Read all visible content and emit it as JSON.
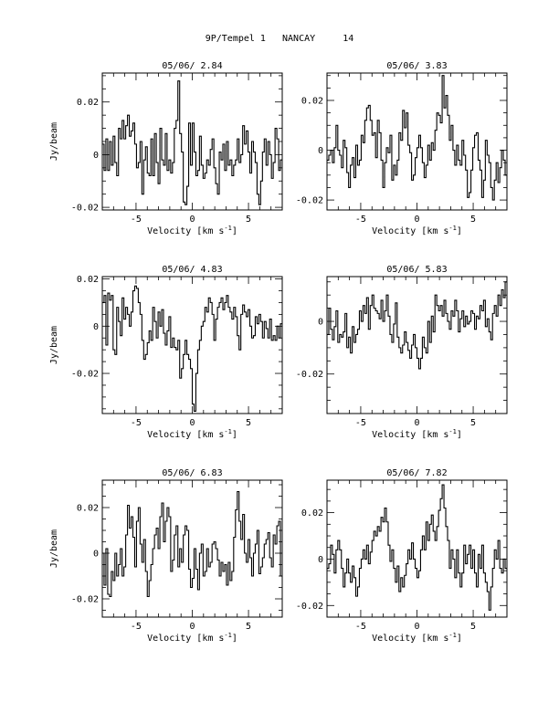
{
  "figure": {
    "title": "9P/Tempel 1   NANCAY     14"
  },
  "chart_data": [
    {
      "type": "line",
      "title": "05/06/ 2.84",
      "xlabel": "Velocity [km s^-1]",
      "ylabel": "Jy/beam",
      "xlim": [
        -8,
        8
      ],
      "ylim": [
        -0.021,
        0.031
      ],
      "x_ticks": [
        -5,
        0,
        5
      ],
      "y_ticks": [
        0.02,
        0,
        -0.02
      ],
      "y_tick_labels": [
        "0.02",
        "0",
        "-0.02"
      ],
      "x0": -8.0,
      "dx": 0.16,
      "values": [
        0.004,
        -0.006,
        0.006,
        -0.006,
        0.005,
        -0.004,
        0.007,
        -0.003,
        -0.008,
        0.01,
        0.006,
        0.013,
        0.006,
        0.011,
        0.015,
        0.007,
        0.009,
        0.012,
        0.004,
        -0.005,
        -0.003,
        0.005,
        -0.015,
        -0.002,
        0.003,
        -0.007,
        -0.008,
        0.006,
        -0.008,
        0.008,
        -0.003,
        -0.011,
        0.01,
        -0.002,
        -0.004,
        0.008,
        -0.006,
        -0.002,
        -0.007,
        -0.003,
        0.01,
        0.013,
        0.028,
        0.008,
        0.001,
        -0.018,
        -0.019,
        -0.012,
        0.012,
        -0.004,
        0.012,
        0.001,
        -0.008,
        -0.006,
        0.007,
        -0.004,
        -0.009,
        -0.007,
        -0.002,
        -0.004,
        0.002,
        0.006,
        -0.005,
        -0.011,
        -0.015,
        0.001,
        -0.002,
        0.004,
        -0.006,
        0.005,
        -0.004,
        -0.002,
        -0.008,
        -0.004,
        -0.002,
        0.006,
        -0.003,
        0.0,
        0.011,
        0.004,
        0.009,
        0.001,
        -0.007,
        0.005,
        0.001,
        -0.003,
        -0.015,
        -0.019,
        -0.01,
        0.001,
        0.006,
        -0.004,
        0.005,
        0.0,
        -0.009,
        -0.003,
        0.01,
        0.006,
        -0.006,
        -0.002
      ]
    },
    {
      "type": "line",
      "title": "05/06/ 3.83",
      "xlabel": "Velocity [km s^-1]",
      "ylabel": "",
      "xlim": [
        -8,
        8
      ],
      "ylim": [
        -0.024,
        0.031
      ],
      "x_ticks": [
        -5,
        0,
        5
      ],
      "y_ticks": [
        0.02,
        0,
        -0.02
      ],
      "y_tick_labels": [
        "0.02",
        "0",
        "-0.02"
      ],
      "x0": -8.0,
      "dx": 0.16,
      "values": [
        -0.004,
        -0.002,
        0.0,
        -0.005,
        0.001,
        0.01,
        0.0,
        -0.002,
        -0.007,
        0.004,
        0.001,
        -0.009,
        -0.015,
        -0.006,
        -0.003,
        -0.011,
        0.002,
        -0.006,
        -0.004,
        0.006,
        0.003,
        0.012,
        0.017,
        0.018,
        0.012,
        0.006,
        0.007,
        -0.003,
        0.012,
        0.007,
        -0.004,
        -0.015,
        -0.005,
        0.001,
        -0.001,
        0.006,
        -0.012,
        -0.006,
        -0.01,
        -0.004,
        0.007,
        0.004,
        0.016,
        0.009,
        0.015,
        0.002,
        -0.001,
        -0.012,
        -0.01,
        -0.003,
        0.001,
        0.006,
        0.001,
        -0.005,
        -0.011,
        -0.006,
        0.002,
        -0.004,
        0.003,
        0.0,
        0.008,
        0.015,
        0.014,
        0.011,
        0.03,
        0.017,
        0.022,
        0.014,
        0.004,
        0.01,
        0.0,
        -0.006,
        0.002,
        -0.004,
        -0.006,
        0.004,
        -0.002,
        -0.008,
        -0.019,
        -0.017,
        -0.008,
        0.001,
        0.006,
        0.007,
        -0.004,
        -0.008,
        -0.019,
        -0.012,
        0.004,
        -0.002,
        -0.005,
        -0.015,
        -0.02,
        -0.012,
        -0.005,
        -0.013,
        -0.007,
        0.0,
        -0.004,
        -0.01
      ]
    },
    {
      "type": "line",
      "title": "05/06/ 4.83",
      "xlabel": "Velocity [km s^-1]",
      "ylabel": "Jy/beam",
      "xlim": [
        -8,
        8
      ],
      "ylim": [
        -0.037,
        0.021
      ],
      "x_ticks": [
        -5,
        0,
        5
      ],
      "y_ticks": [
        0.02,
        0,
        -0.02
      ],
      "y_tick_labels": [
        "0.02",
        "0",
        "-0.02"
      ],
      "x0": -8.0,
      "dx": 0.16,
      "values": [
        0.01,
        0.013,
        -0.008,
        0.014,
        0.011,
        0.013,
        -0.01,
        -0.012,
        0.008,
        0.002,
        -0.004,
        0.012,
        0.003,
        0.008,
        0.005,
        0.0,
        0.006,
        0.015,
        0.017,
        0.016,
        0.01,
        0.005,
        -0.006,
        -0.014,
        -0.012,
        -0.007,
        -0.002,
        -0.006,
        0.008,
        0.002,
        -0.005,
        0.006,
        0.0,
        0.007,
        -0.003,
        -0.008,
        -0.002,
        0.004,
        -0.009,
        -0.005,
        -0.009,
        -0.01,
        -0.006,
        -0.022,
        -0.018,
        -0.012,
        -0.006,
        -0.012,
        -0.014,
        -0.018,
        -0.033,
        -0.036,
        -0.02,
        -0.01,
        -0.006,
        0.0,
        0.002,
        0.008,
        0.006,
        0.012,
        0.01,
        0.005,
        -0.006,
        0.003,
        0.008,
        0.01,
        0.012,
        0.007,
        0.01,
        0.013,
        0.008,
        0.006,
        0.003,
        0.008,
        0.004,
        -0.004,
        -0.01,
        0.005,
        0.009,
        0.006,
        0.004,
        0.007,
        0.0,
        -0.005,
        -0.004,
        0.004,
        0.001,
        0.005,
        0.002,
        -0.005,
        0.002,
        -0.001,
        -0.005,
        0.003,
        -0.006,
        -0.004,
        -0.006,
        0.0,
        -0.005,
        0.001
      ]
    },
    {
      "type": "line",
      "title": "05/06/ 5.83",
      "xlabel": "Velocity [km s^-1]",
      "ylabel": "",
      "xlim": [
        -8,
        8
      ],
      "ylim": [
        -0.035,
        0.017
      ],
      "x_ticks": [
        -5,
        0,
        5
      ],
      "y_ticks": [
        0,
        -0.02
      ],
      "y_tick_labels": [
        "0",
        "-0.02"
      ],
      "x0": -8.0,
      "dx": 0.16,
      "values": [
        -0.005,
        0.005,
        -0.003,
        -0.007,
        -0.002,
        0.004,
        -0.008,
        -0.005,
        -0.006,
        -0.004,
        0.003,
        -0.01,
        -0.006,
        -0.012,
        -0.002,
        -0.008,
        -0.005,
        -0.003,
        0.004,
        0.0,
        0.006,
        0.003,
        0.009,
        -0.003,
        0.006,
        0.01,
        0.005,
        0.004,
        0.003,
        0.001,
        0.008,
        0.0,
        0.004,
        0.01,
        0.002,
        -0.005,
        -0.008,
        -0.001,
        0.007,
        -0.006,
        -0.01,
        -0.012,
        -0.009,
        -0.004,
        -0.008,
        -0.011,
        -0.014,
        -0.009,
        -0.005,
        -0.01,
        -0.014,
        -0.018,
        -0.014,
        -0.006,
        -0.01,
        -0.012,
        0.0,
        -0.008,
        0.002,
        -0.004,
        0.01,
        0.006,
        0.004,
        0.006,
        0.002,
        0.008,
        0.003,
        0.0,
        -0.003,
        0.004,
        0.002,
        0.008,
        0.004,
        -0.004,
        0.001,
        0.004,
        -0.002,
        0.002,
        -0.001,
        0.0,
        0.004,
        0.003,
        -0.003,
        0.002,
        0.001,
        0.006,
        0.004,
        0.008,
        -0.002,
        0.001,
        -0.004,
        -0.007,
        0.003,
        0.006,
        0.002,
        0.01,
        0.006,
        0.012,
        0.009,
        0.015
      ]
    },
    {
      "type": "line",
      "title": "05/06/ 6.83",
      "xlabel": "Velocity [km s^-1]",
      "ylabel": "Jy/beam",
      "xlim": [
        -8,
        8
      ],
      "ylim": [
        -0.028,
        0.032
      ],
      "x_ticks": [
        -5,
        0,
        5
      ],
      "y_ticks": [
        0.02,
        0,
        -0.02
      ],
      "y_tick_labels": [
        "0.02",
        "0",
        "-0.02"
      ],
      "x0": -8.0,
      "dx": 0.16,
      "values": [
        0.0,
        -0.014,
        0.002,
        -0.018,
        -0.019,
        -0.008,
        -0.012,
        0.0,
        -0.01,
        -0.005,
        0.002,
        -0.01,
        -0.006,
        0.008,
        0.021,
        0.011,
        0.016,
        0.007,
        -0.006,
        0.014,
        0.02,
        0.004,
        -0.004,
        0.006,
        -0.008,
        -0.019,
        -0.012,
        -0.005,
        0.002,
        0.008,
        0.011,
        0.002,
        0.016,
        0.022,
        0.005,
        0.014,
        0.02,
        0.016,
        -0.008,
        -0.003,
        0.008,
        0.012,
        -0.006,
        0.002,
        -0.004,
        0.008,
        0.012,
        0.01,
        -0.007,
        -0.015,
        -0.011,
        0.002,
        -0.007,
        -0.016,
        0.0,
        0.004,
        -0.01,
        -0.008,
        0.002,
        -0.006,
        -0.004,
        0.004,
        0.005,
        0.002,
        -0.003,
        -0.01,
        -0.004,
        -0.008,
        -0.005,
        -0.014,
        -0.004,
        -0.012,
        -0.008,
        0.007,
        0.019,
        0.027,
        0.014,
        0.006,
        0.017,
        0.0,
        -0.004,
        0.006,
        -0.002,
        -0.01,
        0.0,
        0.004,
        0.01,
        -0.009,
        -0.006,
        -0.002,
        0.004,
        0.006,
        0.009,
        -0.002,
        -0.006,
        0.008,
        0.004,
        0.012,
        0.014,
        -0.01
      ]
    },
    {
      "type": "line",
      "title": "05/06/ 7.82",
      "xlabel": "Velocity [km s^-1]",
      "ylabel": "",
      "xlim": [
        -8,
        8
      ],
      "ylim": [
        -0.025,
        0.034
      ],
      "x_ticks": [
        -5,
        0,
        5
      ],
      "y_ticks": [
        0.02,
        0,
        -0.02
      ],
      "y_tick_labels": [
        "0.02",
        "0",
        "-0.02"
      ],
      "x0": -8.0,
      "dx": 0.16,
      "values": [
        -0.004,
        -0.002,
        0.006,
        0.002,
        -0.006,
        0.004,
        0.008,
        0.004,
        -0.004,
        -0.012,
        -0.006,
        0.0,
        -0.006,
        -0.01,
        -0.003,
        -0.008,
        -0.016,
        -0.012,
        -0.004,
        0.0,
        0.004,
        0.0,
        0.006,
        -0.002,
        0.003,
        0.008,
        0.012,
        0.01,
        0.014,
        0.012,
        0.018,
        0.016,
        0.022,
        0.016,
        0.006,
        -0.001,
        0.004,
        -0.004,
        -0.01,
        -0.003,
        -0.014,
        -0.008,
        -0.012,
        -0.007,
        -0.002,
        0.004,
        0.0,
        0.007,
        0.0,
        -0.004,
        -0.008,
        -0.005,
        0.004,
        0.01,
        0.004,
        0.016,
        0.008,
        0.015,
        0.019,
        0.012,
        0.008,
        0.014,
        0.021,
        0.026,
        0.032,
        0.022,
        0.014,
        0.008,
        -0.004,
        0.004,
        0.0,
        -0.008,
        0.004,
        -0.006,
        -0.012,
        -0.006,
        0.006,
        -0.002,
        0.002,
        0.006,
        -0.004,
        0.004,
        -0.006,
        -0.012,
        0.002,
        -0.004,
        0.006,
        -0.006,
        -0.01,
        -0.014,
        -0.022,
        -0.012,
        -0.004,
        0.004,
        0.0,
        0.008,
        -0.004,
        -0.006,
        0.0,
        -0.004
      ]
    }
  ]
}
